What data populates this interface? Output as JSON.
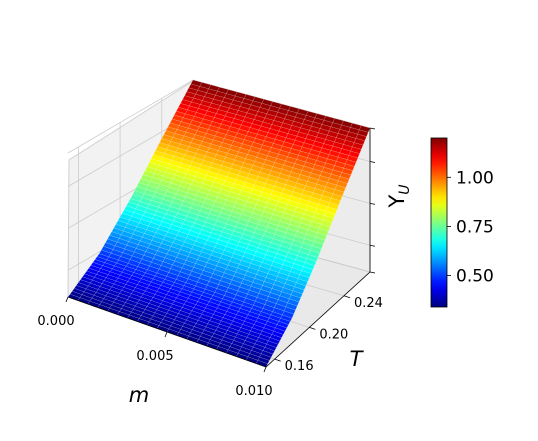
{
  "chart_data": {
    "type": "surface3d",
    "colormap": "jet",
    "grid": true,
    "x": {
      "label": "m",
      "range": [
        0.0,
        0.01
      ],
      "ticks": [
        0.0,
        0.005,
        0.01
      ],
      "tick_labels": [
        "0.000",
        "0.005",
        "0.010"
      ]
    },
    "y": {
      "label": "T",
      "range": [
        0.15,
        0.27
      ],
      "ticks": [
        0.16,
        0.2,
        0.24
      ],
      "tick_labels": [
        "0.16",
        "0.20",
        "0.24"
      ]
    },
    "z": {
      "label_main": "Y",
      "label_sub": "U",
      "range": [
        0.34,
        1.2
      ],
      "tick_labels": []
    },
    "surface": {
      "description": "Y_U depends on T, nearly constant in m",
      "T": [
        0.15,
        0.18,
        0.21,
        0.24,
        0.27
      ],
      "Y_U": [
        0.34,
        0.49,
        0.71,
        0.96,
        1.2
      ]
    },
    "colorbar": {
      "range": [
        0.34,
        1.2
      ],
      "ticks": [
        0.5,
        0.75,
        1.0
      ],
      "tick_labels": [
        "0.50",
        "0.75",
        "1.00"
      ]
    }
  }
}
